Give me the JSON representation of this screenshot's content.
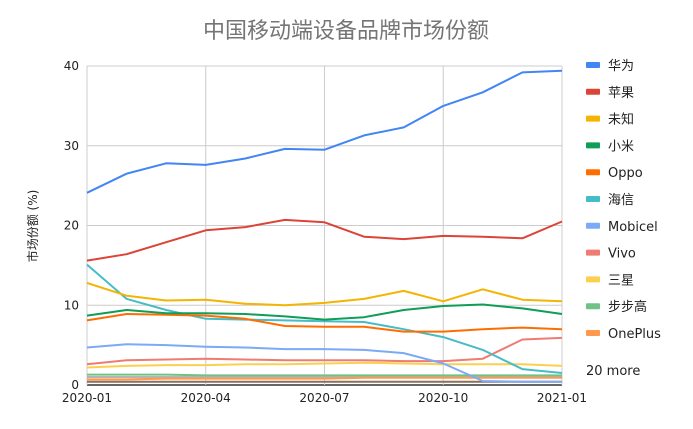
{
  "chart_data": {
    "type": "line",
    "title": "中国移动端设备品牌市场份额",
    "xlabel": "",
    "ylabel": "市场份额 (%)",
    "x": [
      "2020-01",
      "2020-02",
      "2020-03",
      "2020-04",
      "2020-05",
      "2020-06",
      "2020-07",
      "2020-08",
      "2020-09",
      "2020-10",
      "2020-11",
      "2020-12",
      "2021-01"
    ],
    "x_ticks": [
      "2020-01",
      "2020-04",
      "2020-07",
      "2020-10",
      "2021-01"
    ],
    "y_ticks": [
      "0",
      "10",
      "20",
      "30",
      "40"
    ],
    "ylim": [
      0,
      40
    ],
    "grid": true,
    "legend_position": "right",
    "legend_more": "20 more",
    "series": [
      {
        "name": "华为",
        "color": "#4285f4",
        "values": [
          24.1,
          26.5,
          27.8,
          27.6,
          28.4,
          29.6,
          29.5,
          31.3,
          32.3,
          35.0,
          36.7,
          39.2,
          39.4
        ]
      },
      {
        "name": "苹果",
        "color": "#db4437",
        "values": [
          15.6,
          16.4,
          17.9,
          19.4,
          19.8,
          20.7,
          20.4,
          18.6,
          18.3,
          18.7,
          18.6,
          18.4,
          20.5
        ]
      },
      {
        "name": "未知",
        "color": "#f4b400",
        "values": [
          12.8,
          11.2,
          10.6,
          10.7,
          10.2,
          10.0,
          10.3,
          10.8,
          11.8,
          10.5,
          12.0,
          10.7,
          10.5
        ]
      },
      {
        "name": "小米",
        "color": "#0f9d58",
        "values": [
          8.7,
          9.4,
          9.0,
          9.0,
          8.9,
          8.6,
          8.2,
          8.5,
          9.4,
          9.9,
          10.1,
          9.6,
          8.9
        ]
      },
      {
        "name": "Oppo",
        "color": "#ff6d01",
        "values": [
          8.1,
          8.9,
          8.8,
          8.7,
          8.3,
          7.4,
          7.3,
          7.3,
          6.7,
          6.7,
          7.0,
          7.2,
          7.0
        ]
      },
      {
        "name": "海信",
        "color": "#46bdc6",
        "values": [
          15.1,
          10.8,
          9.4,
          8.3,
          8.2,
          8.1,
          8.0,
          7.9,
          7.0,
          6.0,
          4.4,
          2.0,
          1.5
        ]
      },
      {
        "name": "Mobicel",
        "color": "#7baaf7",
        "values": [
          4.7,
          5.1,
          5.0,
          4.8,
          4.7,
          4.5,
          4.5,
          4.4,
          4.0,
          2.7,
          0.5,
          0.4,
          0.4
        ]
      },
      {
        "name": "Vivo",
        "color": "#f07b72",
        "values": [
          2.6,
          3.1,
          3.2,
          3.3,
          3.2,
          3.1,
          3.1,
          3.1,
          3.0,
          3.0,
          3.3,
          5.7,
          5.9
        ]
      },
      {
        "name": "三星",
        "color": "#fcd04f",
        "values": [
          2.2,
          2.4,
          2.5,
          2.5,
          2.6,
          2.6,
          2.7,
          2.8,
          2.7,
          2.6,
          2.6,
          2.6,
          2.4
        ]
      },
      {
        "name": "步步高",
        "color": "#71c287",
        "values": [
          1.3,
          1.3,
          1.3,
          1.2,
          1.2,
          1.2,
          1.2,
          1.2,
          1.2,
          1.2,
          1.2,
          1.2,
          1.2
        ]
      },
      {
        "name": "OnePlus",
        "color": "#ff994d",
        "values": [
          0.7,
          0.7,
          0.8,
          0.8,
          0.8,
          0.8,
          0.8,
          0.9,
          0.9,
          0.9,
          0.9,
          0.9,
          0.9
        ]
      },
      {
        "name": "",
        "color": "#8e6f5a",
        "values": [
          0.4,
          0.4,
          0.4,
          0.4,
          0.4,
          0.4,
          0.4,
          0.4,
          0.4,
          0.4,
          0.4,
          0.4,
          0.4
        ]
      },
      {
        "name": "",
        "color": "#b5b5b5",
        "values": [
          1.0,
          1.0,
          1.0,
          1.0,
          1.0,
          1.0,
          1.0,
          1.0,
          1.0,
          1.0,
          1.0,
          1.0,
          1.0
        ]
      }
    ]
  }
}
